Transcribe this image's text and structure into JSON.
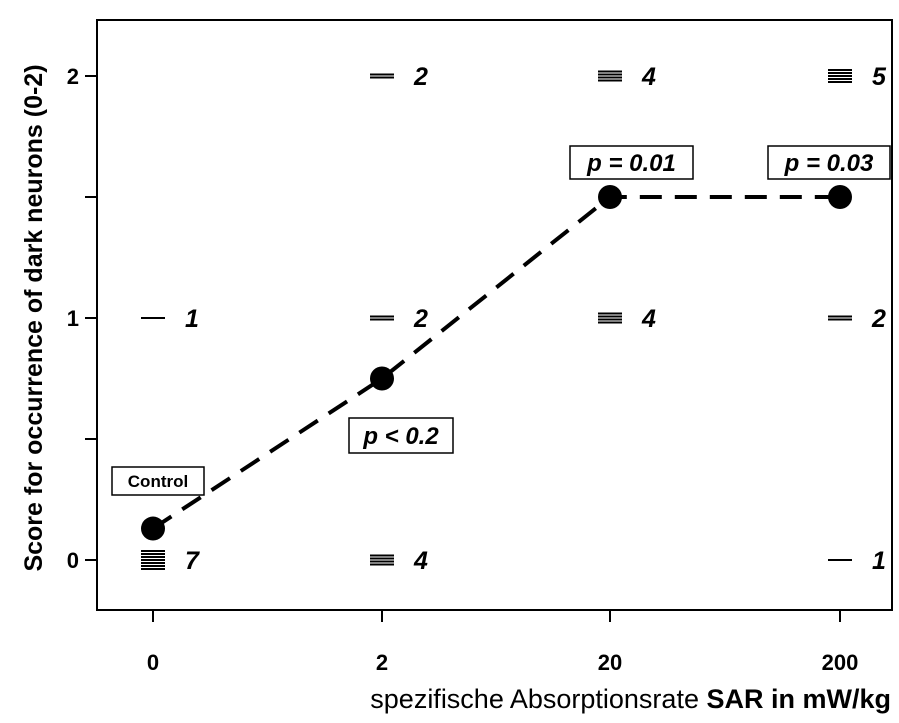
{
  "chart_data": {
    "type": "scatter",
    "categories": [
      "0",
      "2",
      "20",
      "200"
    ],
    "ylabel": "Score for occurrence of dark neurons (0-2)",
    "xlabel_prefix": "spezifische Absorptionsrate",
    "xlabel_bold": "SAR in mW/kg",
    "ylim": [
      -0.18,
      2.22
    ],
    "yticks": [
      "0",
      "1",
      "2"
    ],
    "means": [
      0.13,
      0.75,
      1.5,
      1.5
    ],
    "score_counts": [
      {
        "category": "0",
        "score": 0,
        "count": "7",
        "marks": 7
      },
      {
        "category": "0",
        "score": 1,
        "count": "1",
        "marks": 1
      },
      {
        "category": "2",
        "score": 0,
        "count": "4",
        "marks": 4
      },
      {
        "category": "2",
        "score": 1,
        "count": "2",
        "marks": 2
      },
      {
        "category": "2",
        "score": 2,
        "count": "2",
        "marks": 2
      },
      {
        "category": "20",
        "score": 1,
        "count": "4",
        "marks": 4
      },
      {
        "category": "20",
        "score": 2,
        "count": "4",
        "marks": 4
      },
      {
        "category": "200",
        "score": 0,
        "count": "1",
        "marks": 1
      },
      {
        "category": "200",
        "score": 1,
        "count": "2",
        "marks": 2
      },
      {
        "category": "200",
        "score": 2,
        "count": "5",
        "marks": 5
      }
    ],
    "annotations": [
      {
        "category": "0",
        "text": "Control"
      },
      {
        "category": "2",
        "text": "p < 0.2"
      },
      {
        "category": "20",
        "text": "p = 0.01"
      },
      {
        "category": "200",
        "text": "p = 0.03"
      }
    ],
    "line_style": "dashed"
  }
}
